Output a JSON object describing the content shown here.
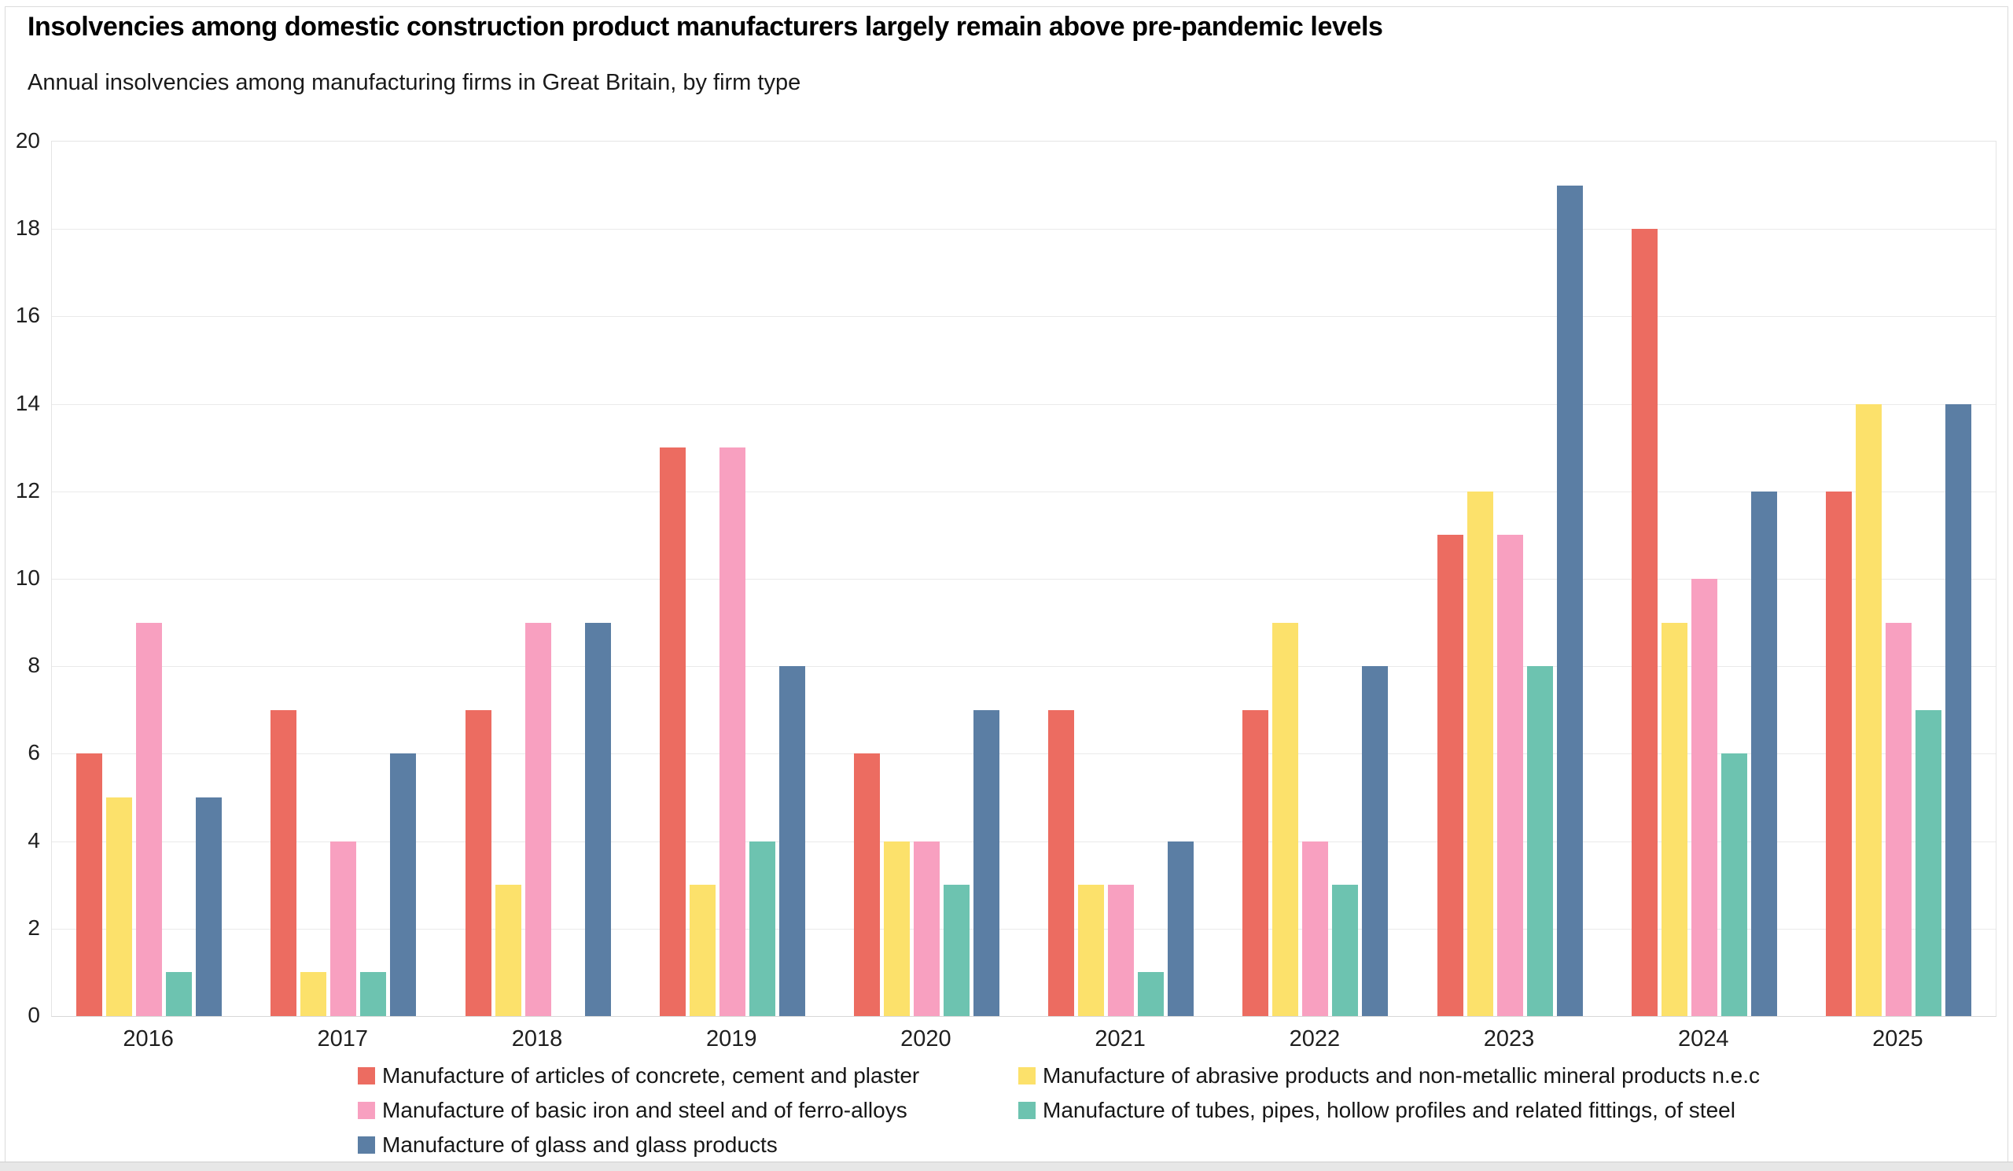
{
  "chart_data": {
    "type": "bar",
    "grouped": true,
    "title": "Insolvencies among domestic construction product manufacturers largely remain above pre-pandemic levels",
    "subtitle": "Annual insolvencies among manufacturing firms in Great Britain, by firm type",
    "categories": [
      "2016",
      "2017",
      "2018",
      "2019",
      "2020",
      "2021",
      "2022",
      "2023",
      "2024",
      "2025"
    ],
    "series_keys": [
      "concrete-cement-plaster",
      "abrasive-non-metallic",
      "basic-iron-steel",
      "tubes-pipes-fittings",
      "glass-products"
    ],
    "series": [
      {
        "name": "Manufacture of articles of concrete, cement and plaster",
        "color": "#EC6C61",
        "values": [
          6,
          7,
          7,
          13,
          6,
          7,
          7,
          11,
          18,
          12
        ]
      },
      {
        "name": "Manufacture of abrasive products and non-metallic mineral products n.e.c",
        "color": "#FCE16B",
        "values": [
          5,
          1,
          3,
          3,
          4,
          3,
          9,
          12,
          9,
          14
        ]
      },
      {
        "name": "Manufacture of basic iron and steel and of ferro-alloys",
        "color": "#F8A0C0",
        "values": [
          9,
          4,
          9,
          13,
          4,
          3,
          4,
          11,
          10,
          9
        ]
      },
      {
        "name": "Manufacture of tubes, pipes, hollow profiles and related fittings, of steel",
        "color": "#6DC3B0",
        "values": [
          1,
          1,
          0,
          4,
          3,
          1,
          3,
          8,
          6,
          7
        ]
      },
      {
        "name": "Manufacture of glass and glass products",
        "color": "#5B7EA4",
        "values": [
          5,
          6,
          9,
          8,
          7,
          4,
          8,
          19,
          12,
          14
        ]
      }
    ],
    "xlabel": "",
    "ylabel": "",
    "ylim": [
      0,
      20
    ],
    "ytick_step": 2,
    "grid": true,
    "legend_position": "bottom",
    "colors": {
      "gridline": "#EAEAEA",
      "plot_border": "#E4E4E4",
      "axis_line": "#D8D8D8",
      "text": "#171717"
    }
  }
}
